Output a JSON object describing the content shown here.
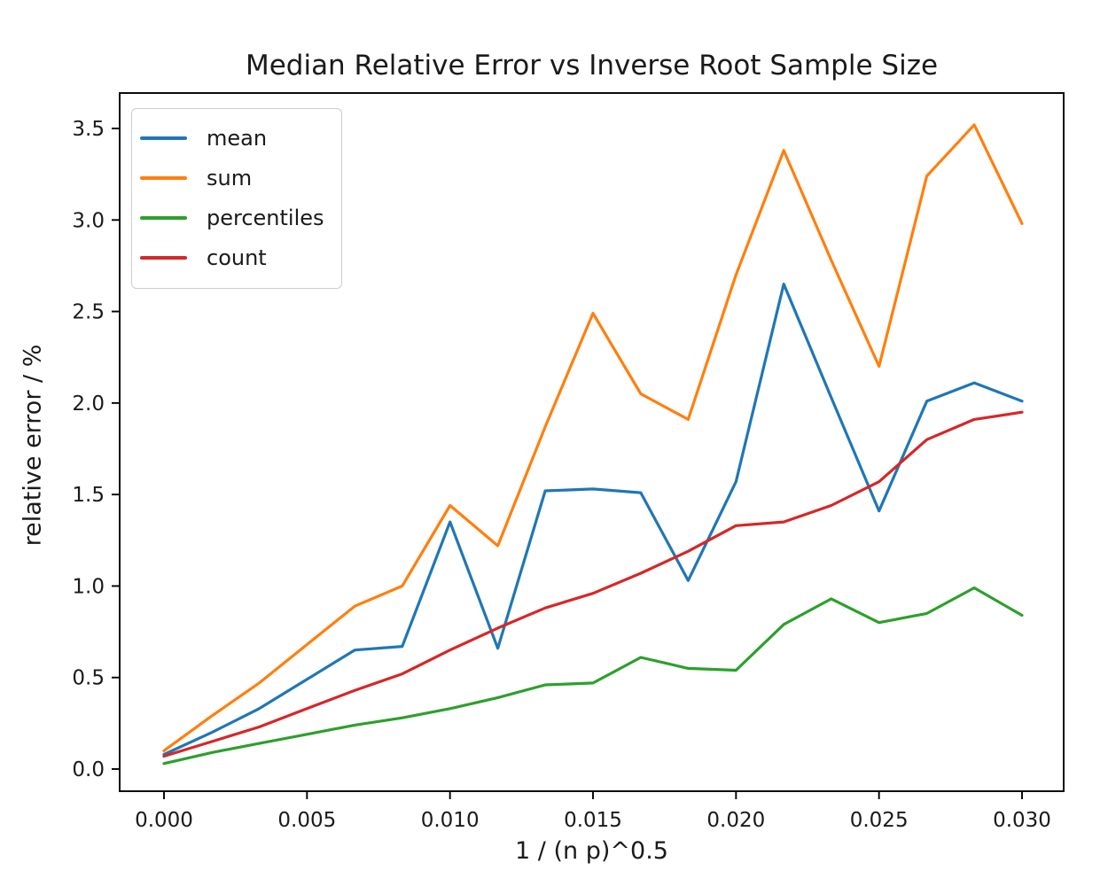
{
  "chart_data": {
    "type": "line",
    "title": "Median Relative Error vs Inverse Root Sample Size",
    "xlabel": "1 / (n p)^0.5",
    "ylabel": "relative error / %",
    "grid": false,
    "legend_position": "upper left",
    "xlim": [
      -0.0015,
      0.0315
    ],
    "ylim": [
      -0.12,
      3.69
    ],
    "x_ticks": {
      "values": [
        0.0,
        0.005,
        0.01,
        0.015,
        0.02,
        0.025,
        0.03
      ],
      "labels": [
        "0.000",
        "0.005",
        "0.010",
        "0.015",
        "0.020",
        "0.025",
        "0.030"
      ]
    },
    "y_ticks": {
      "values": [
        0.0,
        0.5,
        1.0,
        1.5,
        2.0,
        2.5,
        3.0,
        3.5
      ],
      "labels": [
        "0.0",
        "0.5",
        "1.0",
        "1.5",
        "2.0",
        "2.5",
        "3.0",
        "3.5"
      ]
    },
    "x": [
      0.0,
      0.00167,
      0.00333,
      0.005,
      0.00667,
      0.00833,
      0.01,
      0.01167,
      0.01333,
      0.015,
      0.01667,
      0.01833,
      0.02,
      0.02167,
      0.02333,
      0.025,
      0.02667,
      0.02833,
      0.03
    ],
    "series": [
      {
        "name": "mean",
        "color": "#1f77b4",
        "values": [
          0.08,
          0.2,
          0.33,
          0.49,
          0.65,
          0.67,
          1.35,
          0.66,
          1.52,
          1.53,
          1.51,
          1.03,
          1.57,
          2.65,
          2.03,
          1.41,
          2.01,
          2.11,
          2.01
        ]
      },
      {
        "name": "sum",
        "color": "#ff7f0e",
        "values": [
          0.1,
          0.29,
          0.47,
          0.68,
          0.89,
          1.0,
          1.44,
          1.22,
          1.87,
          2.49,
          2.05,
          1.91,
          2.7,
          3.38,
          2.78,
          2.2,
          3.24,
          3.52,
          2.98
        ]
      },
      {
        "name": "percentiles",
        "color": "#2ca02c",
        "values": [
          0.03,
          0.09,
          0.14,
          0.19,
          0.24,
          0.28,
          0.33,
          0.39,
          0.46,
          0.47,
          0.61,
          0.55,
          0.54,
          0.79,
          0.93,
          0.8,
          0.85,
          0.99,
          0.84
        ]
      },
      {
        "name": "count",
        "color": "#d62728",
        "values": [
          0.07,
          0.15,
          0.23,
          0.33,
          0.43,
          0.52,
          0.65,
          0.77,
          0.88,
          0.96,
          1.07,
          1.19,
          1.33,
          1.35,
          1.44,
          1.57,
          1.8,
          1.91,
          1.95
        ]
      }
    ]
  }
}
